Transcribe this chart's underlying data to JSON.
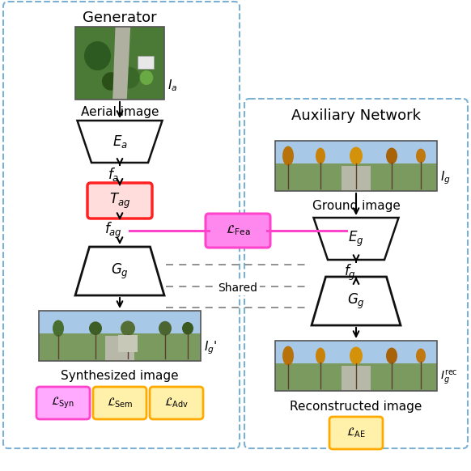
{
  "title": "Generator",
  "aux_title": "Auxiliary Network",
  "bg_color": "#ffffff",
  "dashed_box_color": "#7ab0d4",
  "arrow_color": "#000000",
  "fea_line_color": "#ff44cc",
  "fea_box_face": "#ff88ee",
  "fea_box_edge": "#ff44cc",
  "tag_box_face": "#ffdddd",
  "tag_box_edge": "#ff2222",
  "loss_syn_face": "#ffaaff",
  "loss_syn_edge": "#ff44cc",
  "loss_sem_face": "#fff0aa",
  "loss_sem_edge": "#ffaa00",
  "loss_adv_face": "#fff0aa",
  "loss_adv_edge": "#ffaa00",
  "loss_ae_face": "#fff0aa",
  "loss_ae_edge": "#ffaa00",
  "dashed_color": "#888888",
  "shared_text": "Shared",
  "trap_face": "#ffffff",
  "trap_edge": "#111111",
  "labels": {
    "aerial_img": "Aerial image",
    "ground_img": "Ground image",
    "synth_img": "Synthesized image",
    "recon_img": "Reconstructed image",
    "Ea": "$E_a$",
    "fa": "$f_a$",
    "Tag": "$T_{ag}$",
    "fag": "$f_{ag}$",
    "Gg_left": "$G_g$",
    "Gg_right": "$G_g$",
    "Eg": "$E_g$",
    "fg": "$f_g$",
    "Ig_prime": "$I_g$'",
    "Ig_rec": "$I_g^{\\mathrm{rec}}$",
    "Ia": "$I_a$",
    "Ig": "$I_g$",
    "L_Fea": "$\\mathcal{L}_{\\mathrm{Fea}}$",
    "L_Syn": "$\\mathcal{L}_{\\mathrm{Syn}}$",
    "L_Sem": "$\\mathcal{L}_{\\mathrm{Sem}}$",
    "L_Adv": "$\\mathcal{L}_{\\mathrm{Adv}}$",
    "L_AE": "$\\mathcal{L}_{\\mathrm{AE}}$"
  }
}
